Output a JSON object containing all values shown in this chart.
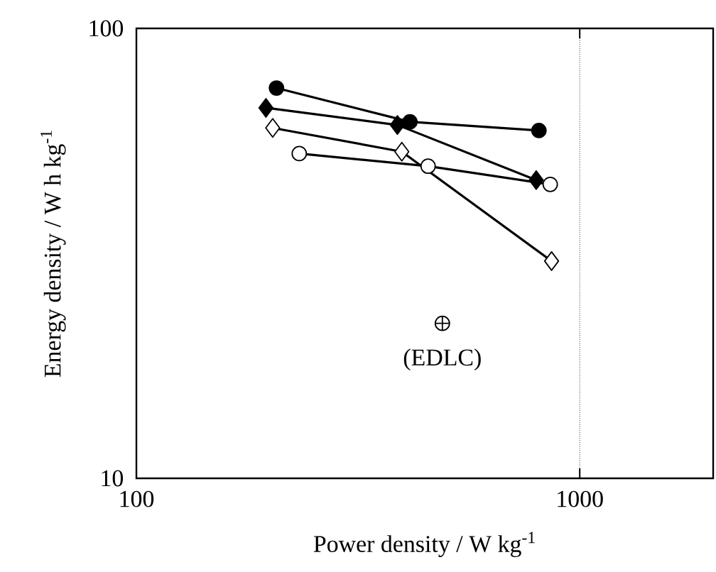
{
  "chart_data": {
    "type": "line",
    "xlabel": "Power density / W kg$^{-1}$",
    "ylabel": "Energy density / W h kg$^{-1}$",
    "log": "xy",
    "xlim": [
      100,
      2000
    ],
    "ylim": [
      10,
      100
    ],
    "xticks": [
      100,
      1000
    ],
    "yticks": [
      10,
      100
    ],
    "grid": true,
    "series": [
      {
        "color": "#000000",
        "marker": "circle",
        "x": [
          207,
          414,
          809
        ],
        "values": [
          73.7,
          62,
          59.3
        ]
      },
      {
        "color": "#000000",
        "marker": "diamond",
        "x": [
          196,
          388,
          798
        ],
        "values": [
          66.6,
          61,
          46
        ]
      },
      {
        "color": "#ffffff",
        "marker": "diamond",
        "x": [
          203,
          397,
          864
        ],
        "values": [
          60.1,
          53.2,
          30.4
        ]
      },
      {
        "color": "#ffffff",
        "marker": "circle",
        "x": [
          233,
          455,
          858
        ],
        "values": [
          52.7,
          49.4,
          45
        ]
      },
      {
        "type": "scatter",
        "color": "#ffffff",
        "marker": "cross",
        "x": [
          490
        ],
        "values": [
          22.1
        ]
      }
    ],
    "annotations": [
      {
        "text": "(EDLC)",
        "x": 490,
        "y": 22.1
      }
    ]
  }
}
